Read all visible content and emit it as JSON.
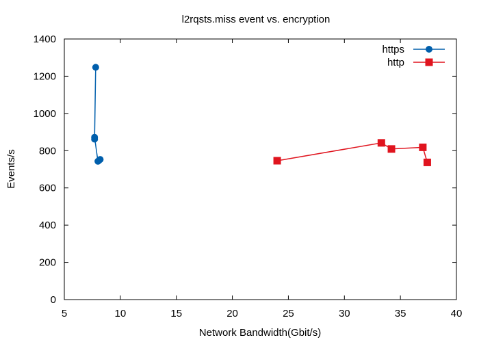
{
  "chart_data": {
    "type": "line",
    "title": "l2rqsts.miss event vs. encryption",
    "xlabel": "Network Bandwidth(Gbit/s)",
    "ylabel": "Events/s",
    "xlim": [
      5,
      40
    ],
    "ylim": [
      0,
      1400
    ],
    "xticks": [
      5,
      10,
      15,
      20,
      25,
      30,
      35,
      40
    ],
    "yticks": [
      0,
      200,
      400,
      600,
      800,
      1000,
      1200,
      1400
    ],
    "grid": false,
    "legend_position": "top-right",
    "series": [
      {
        "name": "https",
        "color": "#005fac",
        "marker": "circle",
        "x": [
          7.8,
          7.7,
          7.7,
          8.0,
          8.2,
          8.1
        ],
        "y": [
          1248,
          862,
          872,
          743,
          753,
          748
        ]
      },
      {
        "name": "http",
        "color": "#e0141e",
        "marker": "square",
        "x": [
          24.0,
          33.3,
          34.2,
          37.0,
          37.4
        ],
        "y": [
          746,
          842,
          809,
          818,
          737
        ]
      }
    ]
  }
}
